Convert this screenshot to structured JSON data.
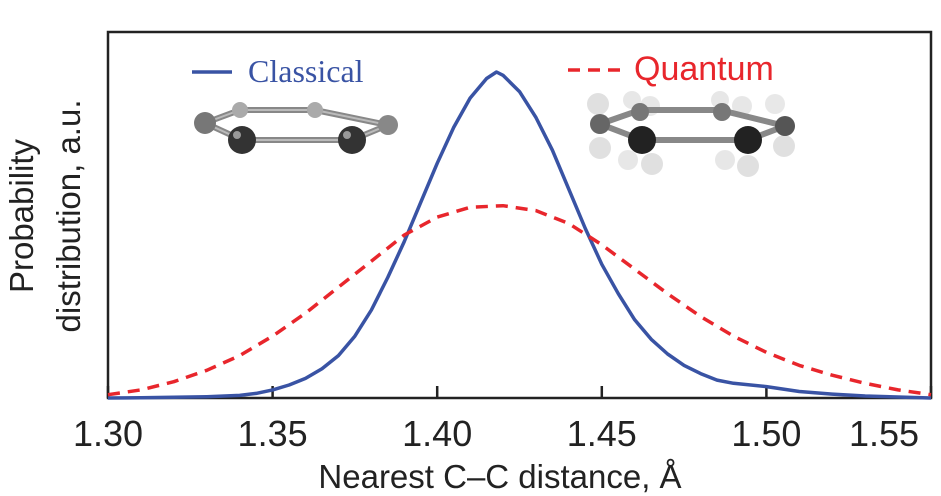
{
  "chart_data": {
    "type": "line",
    "xlabel": "Nearest C–C distance, Å",
    "ylabel_lines": [
      "Probability",
      "distribution, a.u."
    ],
    "xlim": [
      1.3,
      1.55
    ],
    "ylim": [
      0,
      1.0
    ],
    "x_ticks": [
      1.3,
      1.35,
      1.4,
      1.45,
      1.5,
      1.55
    ],
    "x_tick_labels": [
      "1.30",
      "1.35",
      "1.40",
      "1.45",
      "1.50",
      "1.55"
    ],
    "legend_position": "top",
    "series": [
      {
        "name": "Classical",
        "style": "solid",
        "color": "#3953a4",
        "x": [
          1.3,
          1.31,
          1.32,
          1.33,
          1.34,
          1.345,
          1.35,
          1.355,
          1.36,
          1.365,
          1.37,
          1.375,
          1.38,
          1.385,
          1.39,
          1.395,
          1.4,
          1.405,
          1.41,
          1.415,
          1.418,
          1.42,
          1.425,
          1.43,
          1.435,
          1.44,
          1.445,
          1.45,
          1.455,
          1.46,
          1.465,
          1.47,
          1.475,
          1.48,
          1.485,
          1.49,
          1.5,
          1.51,
          1.52,
          1.53,
          1.55
        ],
        "y": [
          0.0,
          0.001,
          0.002,
          0.004,
          0.008,
          0.014,
          0.025,
          0.04,
          0.06,
          0.09,
          0.13,
          0.19,
          0.27,
          0.37,
          0.48,
          0.6,
          0.72,
          0.83,
          0.92,
          0.98,
          1.0,
          0.99,
          0.94,
          0.86,
          0.76,
          0.64,
          0.52,
          0.41,
          0.32,
          0.24,
          0.18,
          0.135,
          0.1,
          0.075,
          0.055,
          0.045,
          0.035,
          0.02,
          0.012,
          0.006,
          0.0
        ]
      },
      {
        "name": "Quantum",
        "style": "dashed",
        "color": "#e8262c",
        "x": [
          1.3,
          1.31,
          1.32,
          1.33,
          1.34,
          1.35,
          1.36,
          1.37,
          1.38,
          1.39,
          1.4,
          1.41,
          1.42,
          1.43,
          1.44,
          1.45,
          1.46,
          1.47,
          1.48,
          1.49,
          1.5,
          1.51,
          1.52,
          1.53,
          1.54,
          1.55
        ],
        "y": [
          0.01,
          0.025,
          0.05,
          0.085,
          0.13,
          0.19,
          0.26,
          0.34,
          0.42,
          0.5,
          0.555,
          0.585,
          0.59,
          0.575,
          0.535,
          0.47,
          0.395,
          0.32,
          0.25,
          0.19,
          0.14,
          0.1,
          0.07,
          0.045,
          0.025,
          0.01
        ]
      }
    ]
  },
  "colors": {
    "classical": "#3953a4",
    "quantum": "#e8262c",
    "axis": "#222222"
  },
  "insets": [
    {
      "name": "classical-benzene-molecule-icon"
    },
    {
      "name": "quantum-benzene-molecule-icon"
    }
  ]
}
